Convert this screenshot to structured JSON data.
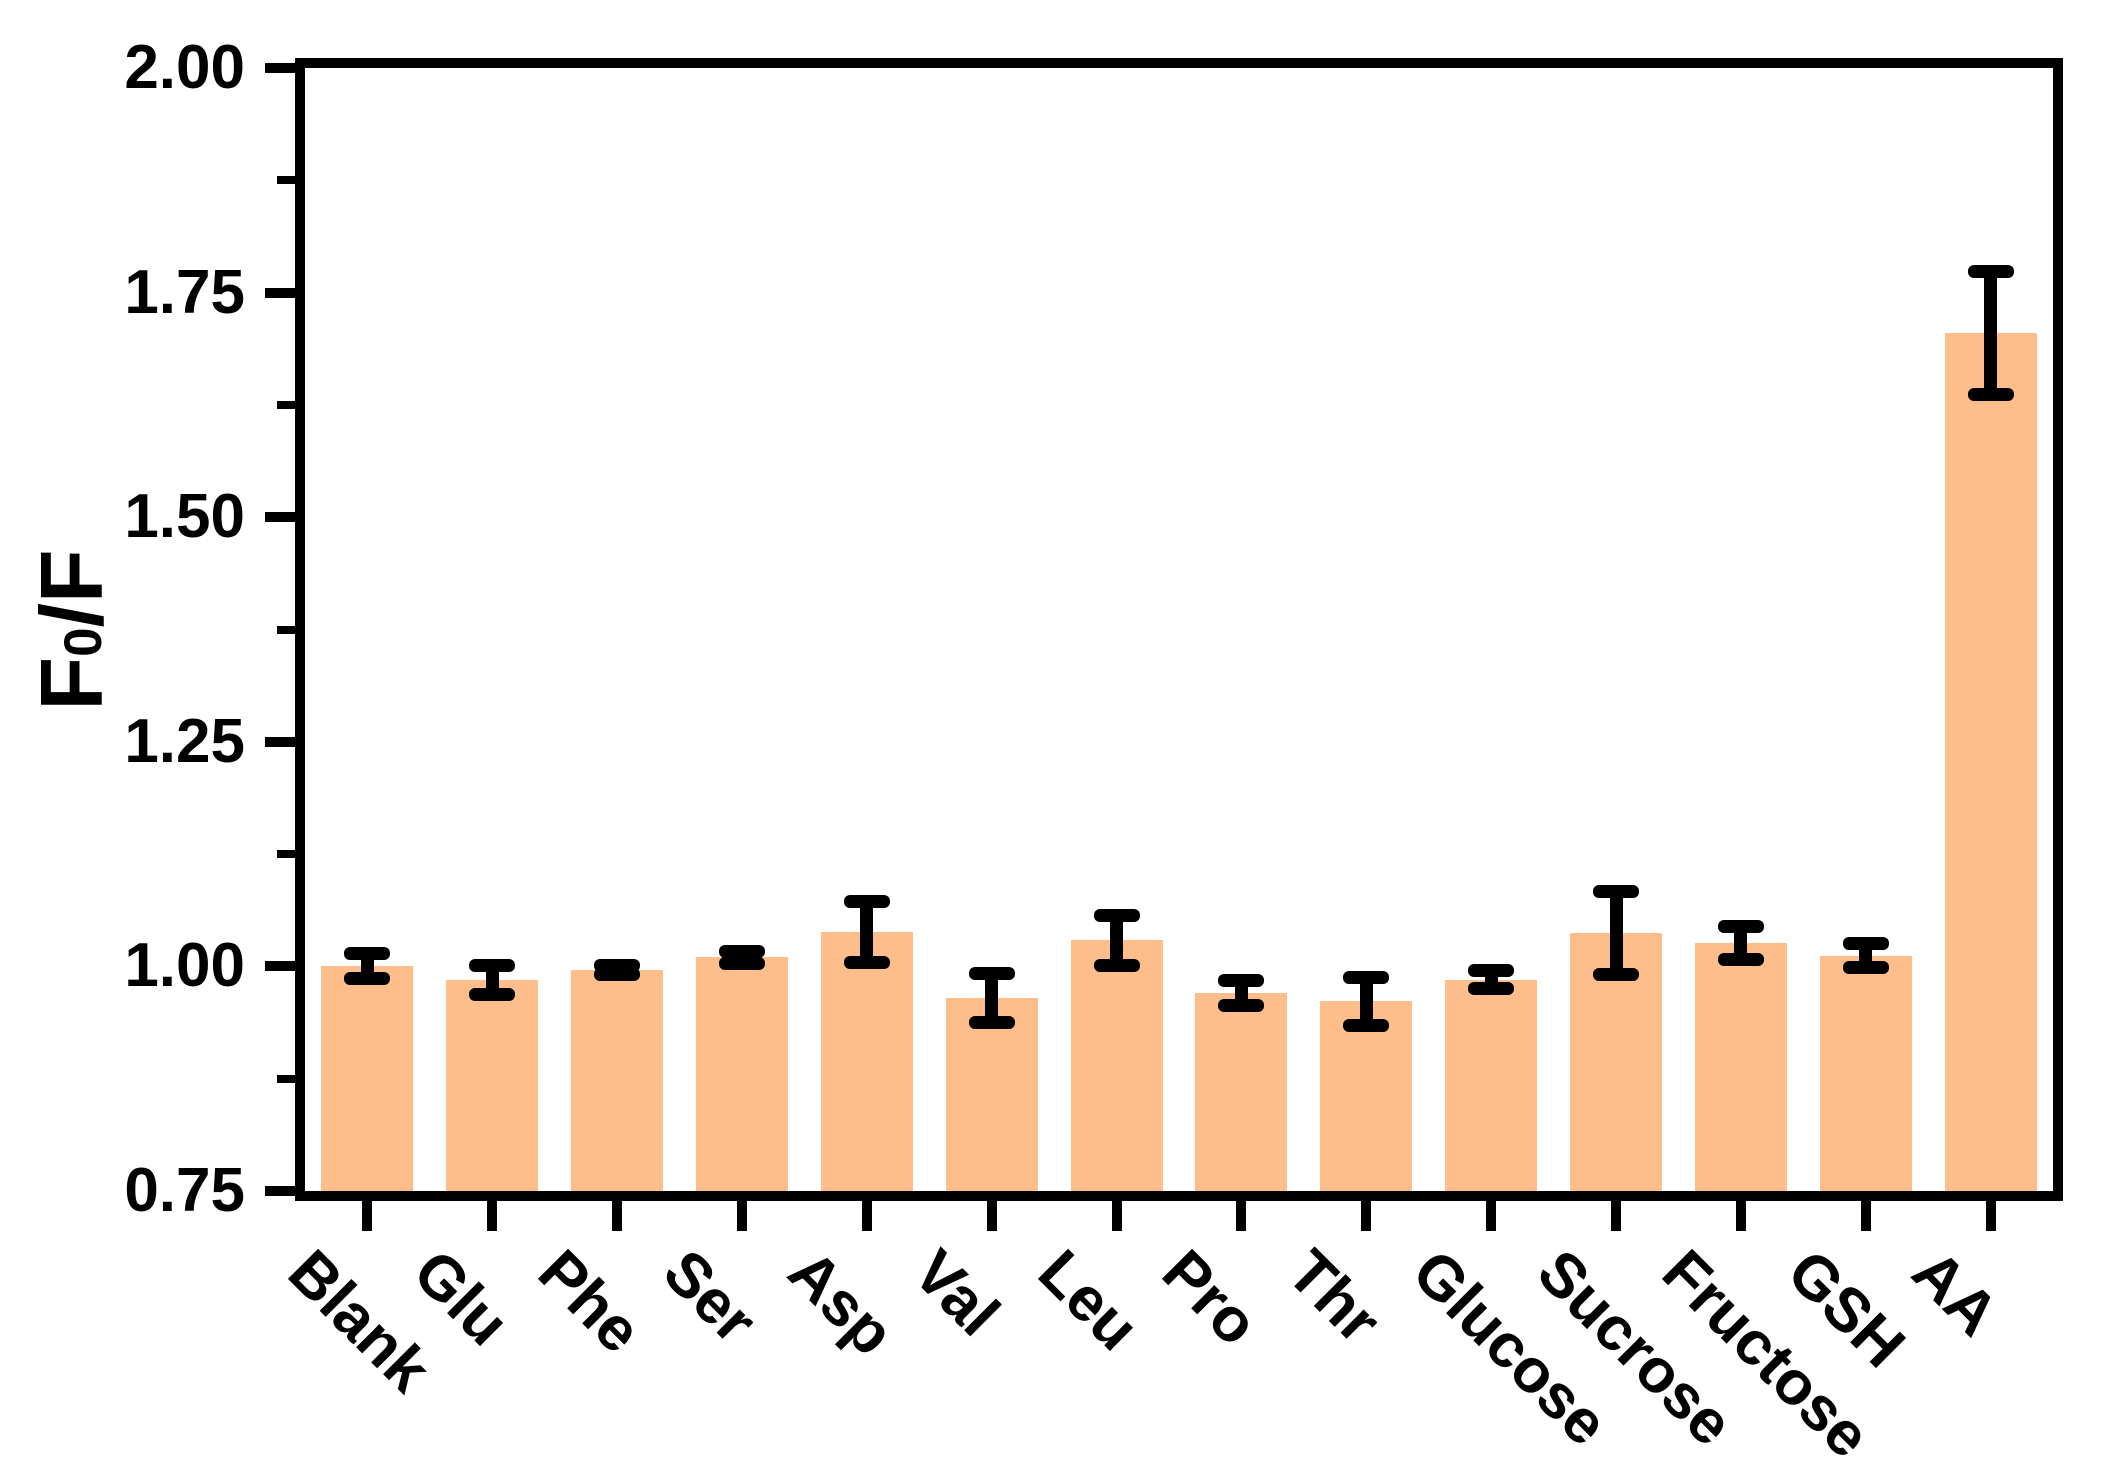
{
  "chart_data": {
    "type": "bar",
    "title": "",
    "xlabel": "",
    "ylabel": "F0/F",
    "ylabel_parts": {
      "base": "F",
      "sub": "0",
      "rest": "/F"
    },
    "categories": [
      "Blank",
      "Glu",
      "Phe",
      "Ser",
      "Asp",
      "Val",
      "Leu",
      "Pro",
      "Thr",
      "Glucose",
      "Sucrose",
      "Fructose",
      "GSH",
      "AA"
    ],
    "values": [
      1.0,
      0.985,
      0.996,
      1.01,
      1.038,
      0.965,
      1.029,
      0.97,
      0.961,
      0.985,
      1.037,
      1.026,
      1.012,
      1.705
    ],
    "errors": [
      0.014,
      0.016,
      0.005,
      0.007,
      0.034,
      0.027,
      0.028,
      0.014,
      0.027,
      0.01,
      0.046,
      0.018,
      0.013,
      0.068
    ],
    "ylim": [
      0.75,
      2.0
    ],
    "yticks": [
      0.75,
      1.0,
      1.25,
      1.5,
      1.75,
      2.0
    ],
    "ytick_labels": [
      "0.75",
      "1.00",
      "1.25",
      "1.50",
      "1.75",
      "2.00"
    ],
    "minor_ytick_step": 0.125,
    "bar_color": "#FDBE8B",
    "error_color": "#000000",
    "axis_color": "#000000",
    "background": "#FFFFFF",
    "grid": false,
    "legend": null
  }
}
